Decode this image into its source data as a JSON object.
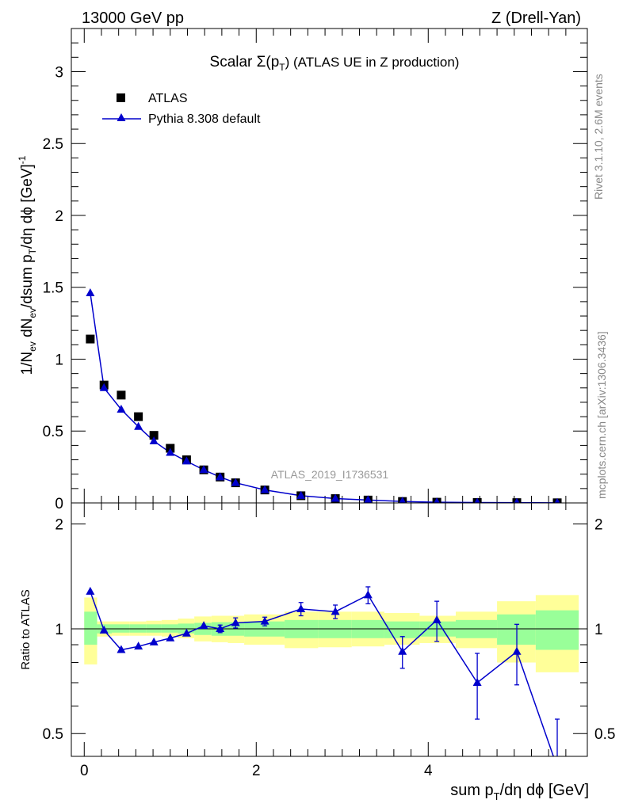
{
  "header": {
    "left": "13000 GeV pp",
    "right": "Z (Drell-Yan)"
  },
  "side_texts": {
    "rivet": "Rivet 3.1.10,  2.6M events",
    "mcplots": "mcplots.cern.ch [arXiv:1306.3436]"
  },
  "chart_data": [
    {
      "type": "scatter",
      "title": "Scalar Σ(pT) (ATLAS UE in Z production)",
      "title_parts": {
        "main": "Scalar Σ(p",
        "sub": "T",
        "tail": ") (ATLAS UE in Z production)"
      },
      "watermark": "ATLAS_2019_I1736531",
      "ylabel_parts": [
        "1/N",
        "ev",
        " dN",
        "ev",
        "/dsum p",
        "T",
        "/dη dϕ  [GeV]",
        "-1"
      ],
      "xlim": [
        -0.15,
        5.85
      ],
      "ylim": [
        0,
        3.3
      ],
      "yticks": [
        0,
        0.5,
        1,
        1.5,
        2,
        2.5,
        3
      ],
      "ytick_labels": [
        "0",
        "0.5",
        "1",
        "1.5",
        "2",
        "2.5",
        "3"
      ],
      "legend": {
        "position": "top-left",
        "entries": [
          "ATLAS",
          "Pythia 8.308 default"
        ]
      },
      "series": [
        {
          "name": "ATLAS",
          "marker": "square",
          "color": "#000000",
          "x": [
            0.07,
            0.23,
            0.43,
            0.63,
            0.81,
            1.0,
            1.19,
            1.39,
            1.58,
            1.76,
            2.1,
            2.52,
            2.92,
            3.3,
            3.7,
            4.1,
            4.57,
            5.03,
            5.5
          ],
          "y": [
            1.14,
            0.82,
            0.75,
            0.6,
            0.47,
            0.38,
            0.3,
            0.23,
            0.18,
            0.14,
            0.09,
            0.05,
            0.03,
            0.02,
            0.01,
            0.005,
            0.003,
            0.002,
            0.001
          ]
        },
        {
          "name": "Pythia 8.308 default",
          "marker": "triangle",
          "color": "#0000cc",
          "x": [
            0.07,
            0.23,
            0.43,
            0.63,
            0.81,
            1.0,
            1.19,
            1.39,
            1.58,
            1.76,
            2.1,
            2.52,
            2.92,
            3.3,
            3.7,
            4.1,
            4.57,
            5.03,
            5.5
          ],
          "y": [
            1.46,
            0.8,
            0.65,
            0.53,
            0.43,
            0.35,
            0.29,
            0.23,
            0.18,
            0.14,
            0.09,
            0.05,
            0.03,
            0.02,
            0.01,
            0.005,
            0.003,
            0.002,
            0.001
          ]
        }
      ]
    },
    {
      "type": "scatter",
      "ylabel": "Ratio to ATLAS",
      "xlabel_parts": [
        "sum p",
        "T",
        "/dη dϕ [GeV]"
      ],
      "log_y": true,
      "xlim": [
        -0.15,
        5.85
      ],
      "ylim": [
        0.43,
        2.3
      ],
      "xticks": [
        0,
        2,
        4
      ],
      "xtick_labels": [
        "0",
        "2",
        "4"
      ],
      "yticks": [
        0.5,
        1,
        2
      ],
      "ytick_labels": [
        "0.5",
        "1",
        "2"
      ],
      "bands": {
        "colors": {
          "outer": "#ffff99",
          "inner": "#99ff99"
        },
        "bins": [
          {
            "x0": 0.0,
            "x1": 0.15,
            "outer": [
              0.79,
              1.23
            ],
            "inner": [
              0.9,
              1.12
            ]
          },
          {
            "x0": 0.15,
            "x1": 0.32,
            "outer": [
              0.95,
              1.05
            ],
            "inner": [
              0.97,
              1.03
            ]
          },
          {
            "x0": 0.32,
            "x1": 0.53,
            "outer": [
              0.955,
              1.05
            ],
            "inner": [
              0.975,
              1.03
            ]
          },
          {
            "x0": 0.53,
            "x1": 0.72,
            "outer": [
              0.955,
              1.05
            ],
            "inner": [
              0.975,
              1.03
            ]
          },
          {
            "x0": 0.72,
            "x1": 0.9,
            "outer": [
              0.955,
              1.055
            ],
            "inner": [
              0.975,
              1.03
            ]
          },
          {
            "x0": 0.9,
            "x1": 1.09,
            "outer": [
              0.95,
              1.06
            ],
            "inner": [
              0.975,
              1.03
            ]
          },
          {
            "x0": 1.09,
            "x1": 1.28,
            "outer": [
              0.94,
              1.07
            ],
            "inner": [
              0.97,
              1.035
            ]
          },
          {
            "x0": 1.28,
            "x1": 1.48,
            "outer": [
              0.92,
              1.085
            ],
            "inner": [
              0.96,
              1.04
            ]
          },
          {
            "x0": 1.48,
            "x1": 1.67,
            "outer": [
              0.915,
              1.09
            ],
            "inner": [
              0.955,
              1.045
            ]
          },
          {
            "x0": 1.67,
            "x1": 1.86,
            "outer": [
              0.91,
              1.09
            ],
            "inner": [
              0.955,
              1.045
            ]
          },
          {
            "x0": 1.86,
            "x1": 2.33,
            "outer": [
              0.9,
              1.1
            ],
            "inner": [
              0.95,
              1.05
            ]
          },
          {
            "x0": 2.33,
            "x1": 2.72,
            "outer": [
              0.88,
              1.12
            ],
            "inner": [
              0.94,
              1.06
            ]
          },
          {
            "x0": 2.72,
            "x1": 3.11,
            "outer": [
              0.885,
              1.12
            ],
            "inner": [
              0.94,
              1.06
            ]
          },
          {
            "x0": 3.11,
            "x1": 3.49,
            "outer": [
              0.89,
              1.12
            ],
            "inner": [
              0.94,
              1.06
            ]
          },
          {
            "x0": 3.49,
            "x1": 3.9,
            "outer": [
              0.9,
              1.11
            ],
            "inner": [
              0.94,
              1.05
            ]
          },
          {
            "x0": 3.9,
            "x1": 4.32,
            "outer": [
              0.91,
              1.09
            ],
            "inner": [
              0.95,
              1.05
            ]
          },
          {
            "x0": 4.32,
            "x1": 4.8,
            "outer": [
              0.88,
              1.12
            ],
            "inner": [
              0.94,
              1.06
            ]
          },
          {
            "x0": 4.8,
            "x1": 5.25,
            "outer": [
              0.8,
              1.2
            ],
            "inner": [
              0.9,
              1.1
            ]
          },
          {
            "x0": 5.25,
            "x1": 5.75,
            "outer": [
              0.75,
              1.25
            ],
            "inner": [
              0.87,
              1.13
            ]
          }
        ]
      },
      "series": [
        {
          "name": "Pythia 8.308 default",
          "marker": "triangle",
          "color": "#0000cc",
          "x": [
            0.07,
            0.23,
            0.43,
            0.63,
            0.81,
            1.0,
            1.19,
            1.39,
            1.58,
            1.76,
            2.1,
            2.52,
            2.92,
            3.3,
            3.7,
            4.1,
            4.57,
            5.03,
            5.5
          ],
          "y": [
            1.28,
            0.99,
            0.87,
            0.89,
            0.915,
            0.94,
            0.97,
            1.02,
            1.0,
            1.04,
            1.05,
            1.14,
            1.12,
            1.25,
            0.86,
            1.06,
            0.7,
            0.86,
            0.4
          ],
          "err": [
            0.01,
            0.01,
            0.01,
            0.01,
            0.015,
            0.015,
            0.015,
            0.02,
            0.025,
            0.035,
            0.03,
            0.05,
            0.05,
            0.07,
            0.09,
            0.14,
            0.15,
            0.17,
            0.15
          ]
        }
      ]
    }
  ]
}
